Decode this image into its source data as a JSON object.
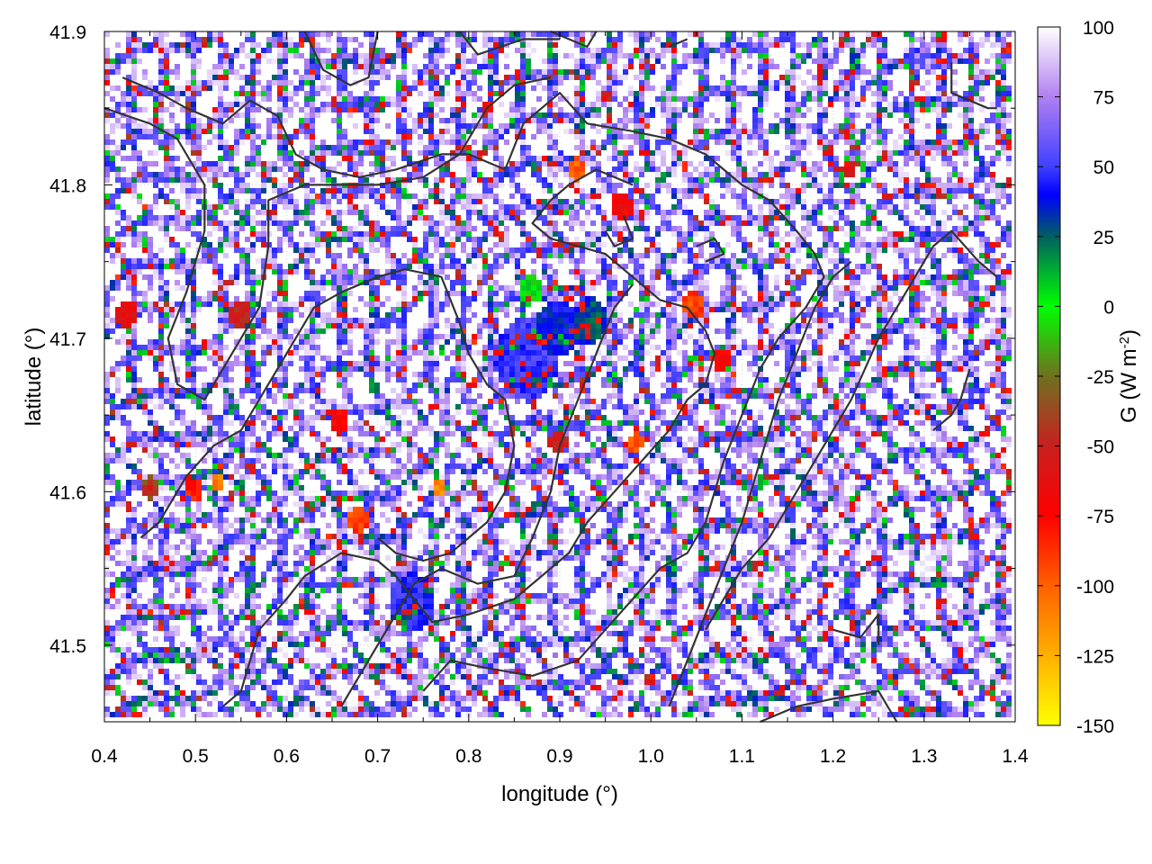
{
  "chart_data": {
    "type": "heatmap",
    "title": "",
    "xlabel": "longitude (°)",
    "ylabel": "latitude (°)",
    "xlim": [
      0.4,
      1.4
    ],
    "ylim": [
      41.45,
      41.9
    ],
    "x_ticks": [
      "0.4",
      "0.5",
      "0.6",
      "0.7",
      "0.8",
      "0.9",
      "1.0",
      "1.1",
      "1.2",
      "1.3",
      "1.4"
    ],
    "y_ticks": [
      "41.5",
      "41.6",
      "41.7",
      "41.8",
      "41.9"
    ],
    "grid": true,
    "colorbar": {
      "label": "G (W m",
      "label_superscript": "-2",
      "label_close": ")",
      "range": [
        -150,
        100
      ],
      "ticks": [
        "100",
        "75",
        "50",
        "25",
        "0",
        "-25",
        "-50",
        "-75",
        "-100",
        "-125",
        "-150"
      ],
      "colormap": [
        {
          "value": -150,
          "color": "#ffff00"
        },
        {
          "value": -125,
          "color": "#ffb000"
        },
        {
          "value": -100,
          "color": "#ff6000"
        },
        {
          "value": -75,
          "color": "#ff0000"
        },
        {
          "value": -50,
          "color": "#c82020"
        },
        {
          "value": -25,
          "color": "#707020"
        },
        {
          "value": 0,
          "color": "#00ff00"
        },
        {
          "value": 25,
          "color": "#006060"
        },
        {
          "value": 40,
          "color": "#0000ff"
        },
        {
          "value": 50,
          "color": "#4040ff"
        },
        {
          "value": 75,
          "color": "#b080f0"
        },
        {
          "value": 100,
          "color": "#ffffff"
        }
      ]
    },
    "contour_color": "#333333",
    "contours": [
      [
        [
          0.42,
          41.87
        ],
        [
          0.46,
          41.86
        ],
        [
          0.49,
          41.85
        ],
        [
          0.53,
          41.84
        ],
        [
          0.56,
          41.855
        ],
        [
          0.59,
          41.845
        ],
        [
          0.61,
          41.82
        ],
        [
          0.64,
          41.81
        ],
        [
          0.68,
          41.805
        ],
        [
          0.72,
          41.81
        ],
        [
          0.77,
          41.82
        ],
        [
          0.8,
          41.82
        ],
        [
          0.84,
          41.81
        ],
        [
          0.86,
          41.84
        ],
        [
          0.9,
          41.86
        ],
        [
          0.93,
          41.84
        ],
        [
          0.98,
          41.835
        ],
        [
          1.02,
          41.83
        ],
        [
          1.06,
          41.82
        ],
        [
          1.1,
          41.8
        ],
        [
          1.13,
          41.79
        ],
        [
          1.16,
          41.77
        ],
        [
          1.18,
          41.755
        ],
        [
          1.19,
          41.74
        ],
        [
          1.17,
          41.72
        ],
        [
          1.14,
          41.7
        ],
        [
          1.12,
          41.68
        ],
        [
          1.1,
          41.65
        ],
        [
          1.08,
          41.62
        ],
        [
          1.06,
          41.58
        ],
        [
          1.04,
          41.56
        ],
        [
          1.01,
          41.55
        ],
        [
          0.98,
          41.53
        ],
        [
          0.95,
          41.51
        ],
        [
          0.92,
          41.49
        ],
        [
          0.87,
          41.48
        ],
        [
          0.82,
          41.485
        ],
        [
          0.78,
          41.49
        ],
        [
          0.75,
          41.47
        ]
      ],
      [
        [
          0.4,
          41.85
        ],
        [
          0.45,
          41.84
        ],
        [
          0.48,
          41.83
        ],
        [
          0.51,
          41.8
        ],
        [
          0.51,
          41.77
        ],
        [
          0.49,
          41.73
        ],
        [
          0.47,
          41.7
        ],
        [
          0.48,
          41.67
        ],
        [
          0.51,
          41.66
        ],
        [
          0.53,
          41.68
        ],
        [
          0.55,
          41.7
        ],
        [
          0.57,
          41.72
        ],
        [
          0.58,
          41.76
        ],
        [
          0.58,
          41.79
        ],
        [
          0.62,
          41.8
        ],
        [
          0.66,
          41.8
        ],
        [
          0.7,
          41.8
        ],
        [
          0.75,
          41.805
        ],
        [
          0.79,
          41.82
        ],
        [
          0.82,
          41.85
        ],
        [
          0.85,
          41.865
        ],
        [
          0.89,
          41.87
        ]
      ],
      [
        [
          0.62,
          41.9
        ],
        [
          0.64,
          41.875
        ],
        [
          0.67,
          41.865
        ],
        [
          0.69,
          41.87
        ],
        [
          0.7,
          41.9
        ]
      ],
      [
        [
          0.79,
          41.9
        ],
        [
          0.81,
          41.885
        ],
        [
          0.86,
          41.895
        ],
        [
          0.9,
          41.895
        ]
      ],
      [
        [
          0.89,
          41.9
        ],
        [
          0.93,
          41.89
        ],
        [
          0.94,
          41.9
        ]
      ],
      [
        [
          1.02,
          41.89
        ],
        [
          1.04,
          41.895
        ]
      ],
      [
        [
          1.33,
          41.88
        ],
        [
          1.33,
          41.86
        ],
        [
          1.37,
          41.85
        ],
        [
          1.38,
          41.85
        ]
      ],
      [
        [
          0.98,
          41.8
        ],
        [
          0.94,
          41.81
        ],
        [
          0.91,
          41.8
        ],
        [
          0.89,
          41.79
        ],
        [
          0.87,
          41.775
        ],
        [
          0.89,
          41.765
        ],
        [
          0.92,
          41.76
        ],
        [
          0.95,
          41.755
        ],
        [
          0.98,
          41.74
        ],
        [
          1.01,
          41.725
        ],
        [
          1.04,
          41.72
        ],
        [
          1.06,
          41.705
        ],
        [
          1.07,
          41.69
        ],
        [
          1.06,
          41.67
        ],
        [
          1.04,
          41.66
        ],
        [
          1.02,
          41.64
        ],
        [
          0.99,
          41.62
        ],
        [
          0.96,
          41.6
        ],
        [
          0.93,
          41.58
        ],
        [
          0.91,
          41.56
        ],
        [
          0.88,
          41.545
        ],
        [
          0.85,
          41.53
        ],
        [
          0.8,
          41.52
        ],
        [
          0.76,
          41.515
        ],
        [
          0.74,
          41.53
        ],
        [
          0.72,
          41.545
        ],
        [
          0.7,
          41.555
        ],
        [
          0.66,
          41.56
        ],
        [
          0.62,
          41.545
        ],
        [
          0.6,
          41.53
        ],
        [
          0.57,
          41.51
        ],
        [
          0.55,
          41.47
        ],
        [
          0.53,
          41.46
        ]
      ],
      [
        [
          0.44,
          41.57
        ],
        [
          0.46,
          41.58
        ],
        [
          0.49,
          41.61
        ],
        [
          0.52,
          41.63
        ],
        [
          0.55,
          41.64
        ],
        [
          0.57,
          41.66
        ],
        [
          0.59,
          41.68
        ],
        [
          0.61,
          41.7
        ],
        [
          0.63,
          41.72
        ],
        [
          0.66,
          41.73
        ],
        [
          0.7,
          41.74
        ],
        [
          0.73,
          41.745
        ],
        [
          0.77,
          41.74
        ],
        [
          0.79,
          41.71
        ],
        [
          0.8,
          41.69
        ],
        [
          0.82,
          41.67
        ],
        [
          0.84,
          41.66
        ],
        [
          0.85,
          41.63
        ],
        [
          0.84,
          41.6
        ],
        [
          0.82,
          41.58
        ],
        [
          0.8,
          41.57
        ],
        [
          0.78,
          41.56
        ],
        [
          0.75,
          41.555
        ],
        [
          0.72,
          41.56
        ],
        [
          0.7,
          41.57
        ]
      ],
      [
        [
          0.66,
          41.46
        ],
        [
          0.69,
          41.49
        ],
        [
          0.72,
          41.52
        ],
        [
          0.74,
          41.54
        ],
        [
          0.77,
          41.55
        ],
        [
          0.81,
          41.54
        ],
        [
          0.85,
          41.545
        ],
        [
          0.87,
          41.57
        ],
        [
          0.89,
          41.6
        ],
        [
          0.9,
          41.63
        ],
        [
          0.92,
          41.66
        ],
        [
          0.94,
          41.69
        ],
        [
          0.96,
          41.72
        ],
        [
          0.98,
          41.735
        ]
      ],
      [
        [
          1.02,
          41.46
        ],
        [
          1.04,
          41.49
        ],
        [
          1.06,
          41.52
        ],
        [
          1.08,
          41.55
        ],
        [
          1.1,
          41.58
        ],
        [
          1.12,
          41.62
        ],
        [
          1.14,
          41.66
        ],
        [
          1.16,
          41.69
        ],
        [
          1.18,
          41.72
        ],
        [
          1.2,
          41.74
        ],
        [
          1.22,
          41.75
        ]
      ],
      [
        [
          1.06,
          41.51
        ],
        [
          1.08,
          41.53
        ],
        [
          1.1,
          41.55
        ],
        [
          1.13,
          41.57
        ],
        [
          1.16,
          41.6
        ],
        [
          1.19,
          41.63
        ],
        [
          1.22,
          41.66
        ],
        [
          1.25,
          41.7
        ],
        [
          1.28,
          41.73
        ],
        [
          1.31,
          41.76
        ],
        [
          1.33,
          41.77
        ],
        [
          1.36,
          41.75
        ],
        [
          1.38,
          41.74
        ]
      ],
      [
        [
          1.12,
          41.45
        ],
        [
          1.16,
          41.46
        ],
        [
          1.2,
          41.465
        ],
        [
          1.25,
          41.47
        ],
        [
          1.27,
          41.45
        ]
      ],
      [
        [
          1.2,
          41.51
        ],
        [
          1.23,
          41.505
        ],
        [
          1.25,
          41.52
        ],
        [
          1.25,
          41.5
        ]
      ],
      [
        [
          1.31,
          41.64
        ],
        [
          1.33,
          41.65
        ],
        [
          1.34,
          41.66
        ],
        [
          1.35,
          41.68
        ]
      ],
      [
        [
          0.95,
          41.77
        ],
        [
          0.96,
          41.76
        ],
        [
          0.98,
          41.765
        ],
        [
          0.97,
          41.78
        ]
      ],
      [
        [
          1.05,
          41.76
        ],
        [
          1.07,
          41.765
        ],
        [
          1.08,
          41.755
        ],
        [
          1.06,
          41.75
        ]
      ]
    ],
    "hotspots": [
      {
        "x": 0.865,
        "y": 41.685,
        "v": 40,
        "r": 0.035
      },
      {
        "x": 0.9,
        "y": 41.705,
        "v": 30,
        "r": 0.025
      },
      {
        "x": 0.935,
        "y": 41.71,
        "v": 20,
        "r": 0.02
      },
      {
        "x": 0.87,
        "y": 41.73,
        "v": -10,
        "r": 0.012
      },
      {
        "x": 0.74,
        "y": 41.525,
        "v": 35,
        "r": 0.025
      },
      {
        "x": 0.425,
        "y": 41.715,
        "v": -70,
        "r": 0.012
      },
      {
        "x": 0.55,
        "y": 41.715,
        "v": -60,
        "r": 0.012
      },
      {
        "x": 0.5,
        "y": 41.6,
        "v": -90,
        "r": 0.01
      },
      {
        "x": 0.525,
        "y": 41.605,
        "v": -120,
        "r": 0.008
      },
      {
        "x": 0.68,
        "y": 41.58,
        "v": -100,
        "r": 0.012
      },
      {
        "x": 0.66,
        "y": 41.645,
        "v": -80,
        "r": 0.01
      },
      {
        "x": 0.92,
        "y": 41.81,
        "v": -110,
        "r": 0.01
      },
      {
        "x": 0.97,
        "y": 41.785,
        "v": -80,
        "r": 0.012
      },
      {
        "x": 1.05,
        "y": 41.72,
        "v": -100,
        "r": 0.012
      },
      {
        "x": 1.08,
        "y": 41.685,
        "v": -80,
        "r": 0.01
      },
      {
        "x": 0.985,
        "y": 41.63,
        "v": -110,
        "r": 0.008
      },
      {
        "x": 1.22,
        "y": 41.81,
        "v": -70,
        "r": 0.008
      },
      {
        "x": 0.77,
        "y": 41.6,
        "v": -120,
        "r": 0.008
      },
      {
        "x": 0.9,
        "y": 41.63,
        "v": -60,
        "r": 0.01
      },
      {
        "x": 0.45,
        "y": 41.6,
        "v": -50,
        "r": 0.01
      }
    ]
  }
}
